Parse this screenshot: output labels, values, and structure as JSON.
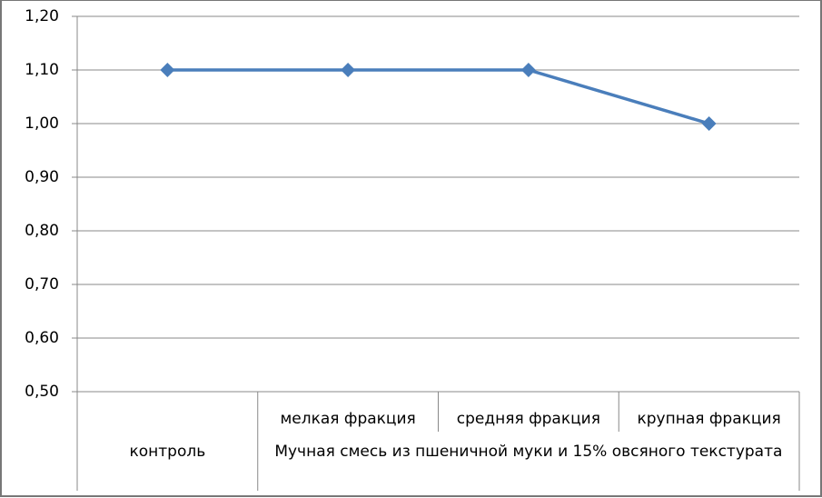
{
  "chart_data": {
    "type": "line",
    "categories": [
      null,
      "мелкая фракция",
      "средняя фракция",
      "крупная фракция"
    ],
    "groups": [
      "контроль",
      "Мучная смесь из пшеничной муки и 15% овсяного текстурата",
      "Мучная смесь из пшеничной муки и 15% овсяного текстурата",
      "Мучная смесь из пшеничной муки и 15% овсяного текстурата"
    ],
    "series": [
      {
        "color": "#4a7ebb",
        "values": [
          1.1,
          1.1,
          1.1,
          1.0
        ]
      }
    ],
    "ylim": [
      0.5,
      1.2
    ],
    "yticks": [
      {
        "value": 0.5,
        "label": "0,50"
      },
      {
        "value": 0.6,
        "label": "0,60"
      },
      {
        "value": 0.7,
        "label": "0,70"
      },
      {
        "value": 0.8,
        "label": "0,80"
      },
      {
        "value": 0.9,
        "label": "0,90"
      },
      {
        "value": 1.0,
        "label": "1,00"
      },
      {
        "value": 1.1,
        "label": "1,10"
      },
      {
        "value": 1.2,
        "label": "1,20"
      }
    ],
    "grid": true
  }
}
